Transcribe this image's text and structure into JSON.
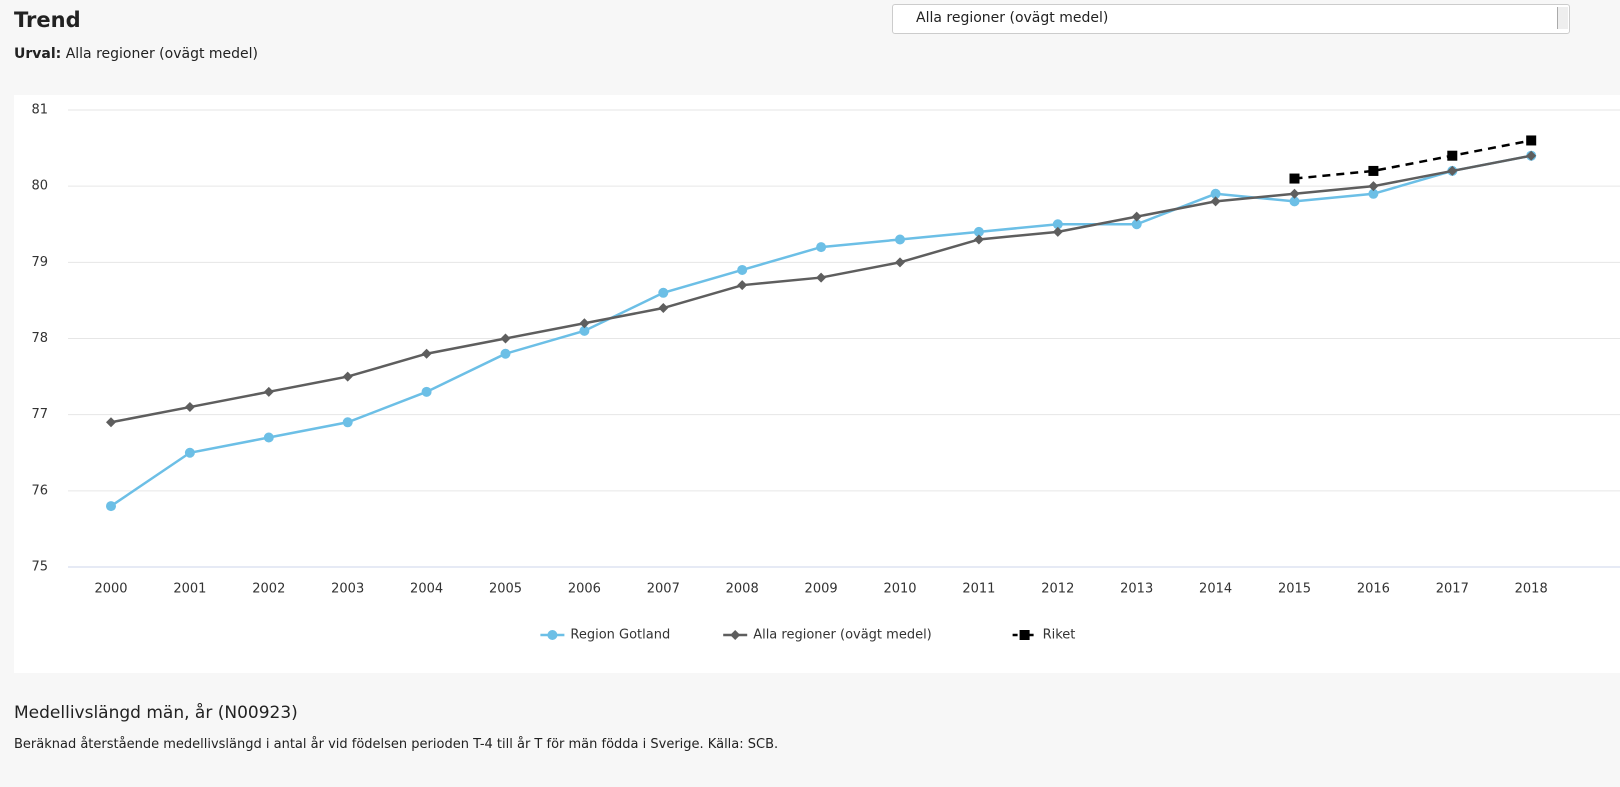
{
  "header": {
    "title": "Trend",
    "selection_label": "Urval:",
    "selection_value": "Alla regioner (ovägt medel)"
  },
  "dropdown": {
    "value": "Alla regioner (ovägt medel)"
  },
  "chart_data": {
    "type": "line",
    "categories": [
      "2000",
      "2001",
      "2002",
      "2003",
      "2004",
      "2005",
      "2006",
      "2007",
      "2008",
      "2009",
      "2010",
      "2011",
      "2012",
      "2013",
      "2014",
      "2015",
      "2016",
      "2017",
      "2018"
    ],
    "series": [
      {
        "name": "Region Gotland",
        "color": "#6cbfe6",
        "marker": "circle",
        "dashed": false,
        "values": [
          75.8,
          76.5,
          76.7,
          76.9,
          77.3,
          77.8,
          78.1,
          78.6,
          78.9,
          79.2,
          79.3,
          79.4,
          79.5,
          79.5,
          79.9,
          79.8,
          79.9,
          80.2,
          80.4
        ]
      },
      {
        "name": "Alla regioner (ovägt medel)",
        "color": "#5e5e5e",
        "marker": "diamond",
        "dashed": false,
        "values": [
          76.9,
          77.1,
          77.3,
          77.5,
          77.8,
          78.0,
          78.2,
          78.4,
          78.7,
          78.8,
          79.0,
          79.3,
          79.4,
          79.6,
          79.8,
          79.9,
          80.0,
          80.2,
          80.4
        ]
      },
      {
        "name": "Riket",
        "color": "#000000",
        "marker": "square",
        "dashed": true,
        "values": [
          null,
          null,
          null,
          null,
          null,
          null,
          null,
          null,
          null,
          null,
          null,
          null,
          null,
          null,
          null,
          80.1,
          80.2,
          80.4,
          80.6
        ]
      }
    ],
    "ylim": [
      75,
      81
    ],
    "yticks": [
      75,
      76,
      77,
      78,
      79,
      80,
      81
    ],
    "grid": true,
    "legend": "bottom"
  },
  "footer": {
    "title": "Medellivslängd män, år (N00923)",
    "description": "Beräknad återstående medellivslängd i antal år vid födelsen perioden T-4 till år T för män födda i Sverige. Källa: SCB."
  }
}
